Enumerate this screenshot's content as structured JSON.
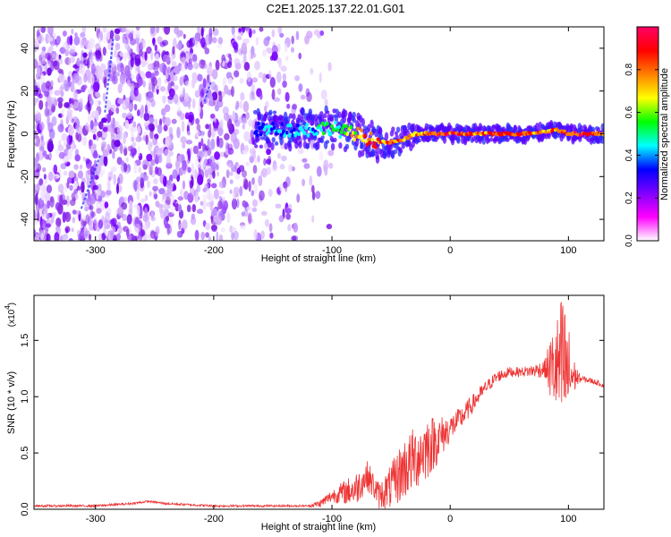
{
  "title": "C2E1.2025.137.22.01.G01",
  "chart_data": [
    {
      "type": "heatmap",
      "title": "C2E1.2025.137.22.01.G01",
      "xlabel": "Height of straight line (km)",
      "ylabel": "Frequency (Hz)",
      "xlim": [
        -352,
        130
      ],
      "ylim": [
        -50,
        50
      ],
      "x_ticks": [
        -300,
        -200,
        -100,
        0,
        100
      ],
      "x_tick_labels": [
        "-300",
        "-200",
        "-100",
        "0",
        "100"
      ],
      "y_ticks": [
        -40,
        -20,
        0,
        20,
        40
      ],
      "y_tick_labels": [
        "-40",
        "-20",
        "0",
        "20",
        "40"
      ],
      "colorbar": {
        "label": "Normalized spectral amplitude",
        "range": [
          0,
          1
        ],
        "ticks": [
          0.0,
          0.2,
          0.4,
          0.6,
          0.8
        ],
        "tick_labels": [
          "0.0",
          "0.2",
          "0.4",
          "0.6",
          "0.8"
        ],
        "colormap": [
          "#ffffff",
          "#ff00ff",
          "#8000ff",
          "#0000ff",
          "#00ffff",
          "#00ff00",
          "#ffff00",
          "#ff8000",
          "#ff0000",
          "#ff0066"
        ]
      },
      "signal_track": {
        "description_values_x": [
          -165,
          -140,
          -120,
          -100,
          -90,
          -80,
          -70,
          -60,
          -50,
          -40,
          -30,
          -20,
          -10,
          0,
          20,
          40,
          60,
          80,
          90,
          100,
          110,
          130
        ],
        "frequency_hz": [
          2,
          2,
          2,
          3,
          1,
          0,
          -2,
          -4,
          -4,
          -3,
          0,
          0,
          0,
          0,
          0,
          0,
          0,
          1,
          2,
          0,
          0,
          0
        ],
        "peak_amplitude": [
          0.4,
          0.45,
          0.45,
          0.55,
          0.6,
          0.75,
          0.85,
          0.9,
          0.85,
          0.8,
          0.85,
          0.9,
          0.95,
          0.95,
          0.9,
          0.9,
          0.95,
          0.85,
          0.9,
          0.95,
          0.98,
          0.8
        ]
      },
      "noise_region_x": [
        -352,
        -110
      ],
      "noise_density_profile": [
        [
          -352,
          1.0
        ],
        [
          -280,
          0.9
        ],
        [
          -200,
          0.8
        ],
        [
          -170,
          0.5
        ],
        [
          -140,
          0.3
        ],
        [
          -110,
          0.1
        ]
      ],
      "streaks": [
        {
          "x1": -312,
          "f1": -35,
          "x2": -296,
          "f2": -10
        },
        {
          "x1": -292,
          "f1": 10,
          "x2": -285,
          "f2": 45
        },
        {
          "x1": -208,
          "f1": 15,
          "x2": -202,
          "f2": 25
        }
      ]
    },
    {
      "type": "line",
      "title": "",
      "xlabel": "Height of straight line (km)",
      "ylabel": "SNR (10 * v/v)",
      "y_scale_label_base": "(x10",
      "y_scale_label_exp": "4",
      "y_scale_label_close": ")",
      "xlim": [
        -352,
        130
      ],
      "ylim": [
        0,
        1.9
      ],
      "x_ticks": [
        -300,
        -200,
        -100,
        0,
        100
      ],
      "x_tick_labels": [
        "-300",
        "-200",
        "-100",
        "0",
        "100"
      ],
      "y_ticks": [
        0.0,
        0.5,
        1.0,
        1.5
      ],
      "y_tick_labels": [
        "0.0",
        "0.5",
        "1.0",
        "1.5"
      ],
      "series": [
        {
          "name": "SNR",
          "color": "#ee3333",
          "baseline": {
            "x": [
              -352,
              -300,
              -270,
              -255,
              -240,
              -200,
              -150,
              -120,
              -110,
              -100,
              -90,
              -80,
              -70,
              -60,
              -50,
              -40,
              -30,
              -20,
              -10,
              0,
              10,
              20,
              30,
              40,
              50,
              60,
              70,
              80,
              85,
              90,
              95,
              98,
              100,
              105,
              110,
              120,
              130
            ],
            "y": [
              0.03,
              0.03,
              0.05,
              0.07,
              0.05,
              0.03,
              0.03,
              0.03,
              0.05,
              0.12,
              0.15,
              0.18,
              0.3,
              0.12,
              0.2,
              0.35,
              0.45,
              0.55,
              0.62,
              0.72,
              0.82,
              0.95,
              1.08,
              1.18,
              1.22,
              1.22,
              1.23,
              1.25,
              1.25,
              1.25,
              1.25,
              1.22,
              1.2,
              1.18,
              1.16,
              1.14,
              1.1
            ]
          },
          "noise_amplitude": {
            "x": [
              -352,
              -120,
              -100,
              -80,
              -60,
              -40,
              -20,
              0,
              30,
              60,
              80,
              85,
              90,
              95,
              100,
              105,
              110,
              130
            ],
            "y": [
              0.01,
              0.01,
              0.06,
              0.15,
              0.12,
              0.28,
              0.3,
              0.12,
              0.06,
              0.04,
              0.08,
              0.3,
              0.45,
              0.7,
              0.45,
              0.15,
              0.03,
              0.02
            ]
          }
        }
      ]
    }
  ]
}
